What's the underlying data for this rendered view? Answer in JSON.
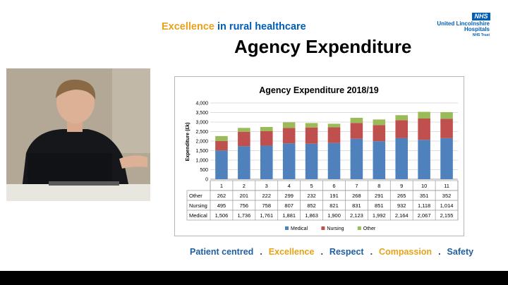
{
  "header": {
    "tagline_part1": "Excellence",
    "tagline_part2": "in rural healthcare",
    "nhs_badge": "NHS",
    "trust_line1": "United Lincolnshire",
    "trust_line2": "Hospitals",
    "trust_line3": "NHS Trust"
  },
  "slide": {
    "title": "Agency Expenditure"
  },
  "colors": {
    "medical": "#4f81bd",
    "nursing": "#c0504d",
    "other": "#9bbb59",
    "brand_blue": "#005eb8",
    "brand_orange": "#e8a21a"
  },
  "chart_data": {
    "type": "bar",
    "stacked": true,
    "title": "Agency Expenditure 2018/19",
    "ylabel": "Expenditure (£k)",
    "xlabel": "",
    "ylim": [
      0,
      4000
    ],
    "yticks": [
      "0",
      "500",
      "1,000",
      "1,500",
      "2,000",
      "2,500",
      "3,000",
      "3,500",
      "4,000"
    ],
    "categories": [
      "1",
      "2",
      "3",
      "4",
      "5",
      "6",
      "7",
      "8",
      "9",
      "10",
      "11"
    ],
    "series": [
      {
        "name": "Medical",
        "values": [
          1506,
          1736,
          1761,
          1881,
          1863,
          1900,
          2123,
          1992,
          2164,
          2067,
          2155
        ],
        "labels": [
          "1,506",
          "1,736",
          "1,761",
          "1,881",
          "1,863",
          "1,900",
          "2,123",
          "1,992",
          "2,164",
          "2,067",
          "2,155"
        ]
      },
      {
        "name": "Nursing",
        "values": [
          495,
          756,
          758,
          807,
          852,
          821,
          831,
          851,
          932,
          1118,
          1014
        ],
        "labels": [
          "495",
          "756",
          "758",
          "807",
          "852",
          "821",
          "831",
          "851",
          "932",
          "1,118",
          "1,014"
        ]
      },
      {
        "name": "Other",
        "values": [
          262,
          201,
          222,
          299,
          232,
          191,
          268,
          291,
          265,
          351,
          352
        ],
        "labels": [
          "262",
          "201",
          "222",
          "299",
          "232",
          "191",
          "268",
          "291",
          "265",
          "351",
          "352"
        ]
      }
    ],
    "table_row_order": [
      "Other",
      "Nursing",
      "Medical"
    ],
    "legend": [
      "Medical",
      "Nursing",
      "Other"
    ],
    "legend_position": "bottom",
    "grid": true
  },
  "footer": {
    "values": [
      "Patient centred",
      "Excellence",
      "Respect",
      "Compassion",
      "Safety"
    ],
    "separator": "."
  }
}
